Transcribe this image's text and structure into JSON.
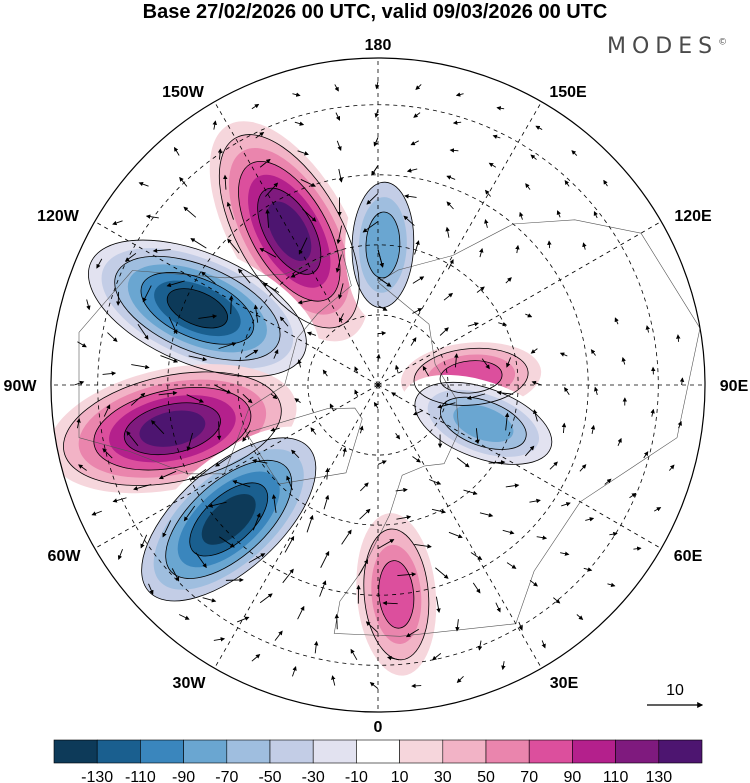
{
  "title": "Base 27/02/2026 00 UTC, valid 09/03/2026 00 UTC",
  "brand": "MODES",
  "brand_mark": "©",
  "meridian_labels": {
    "lon_180": "180",
    "lon_150e": "150E",
    "lon_120e": "120E",
    "lon_90e": "90E",
    "lon_60e": "60E",
    "lon_30e": "30E",
    "lon_0": "0",
    "lon_30w": "30W",
    "lon_60w": "60W",
    "lon_90w": "90W",
    "lon_120w": "120W",
    "lon_150w": "150W"
  },
  "vector_reference": {
    "label": "10"
  },
  "colorbar": {
    "colors": [
      "#0d3a59",
      "#1a5f8f",
      "#3a86bd",
      "#6aa6d1",
      "#9fbedf",
      "#c3cde6",
      "#e2e2f0",
      "#ffffff",
      "#f6d6dc",
      "#f2b3c6",
      "#ea85ad",
      "#dc4f9d",
      "#b4208c",
      "#7f1a7e",
      "#4d1570"
    ],
    "labels": [
      "-130",
      "-110",
      "-90",
      "-70",
      "-50",
      "-30",
      "-10",
      "10",
      "30",
      "50",
      "70",
      "90",
      "110",
      "130"
    ]
  },
  "anomaly_centers": [
    {
      "sign": "positive",
      "value": 140,
      "lon": -150,
      "lat": 52
    },
    {
      "sign": "negative",
      "value": -150,
      "lon": -113,
      "lat": 48
    },
    {
      "sign": "positive",
      "value": 145,
      "lon": -78,
      "lat": 45
    },
    {
      "sign": "negative",
      "value": -140,
      "lon": -48,
      "lat": 47
    },
    {
      "sign": "negative",
      "value": -80,
      "lon": 178,
      "lat": 60
    },
    {
      "sign": "positive",
      "value": 70,
      "lon": 95,
      "lat": 70
    },
    {
      "sign": "negative",
      "value": -90,
      "lon": 70,
      "lat": 66
    },
    {
      "sign": "positive",
      "value": 85,
      "lon": 5,
      "lat": 45
    }
  ]
}
